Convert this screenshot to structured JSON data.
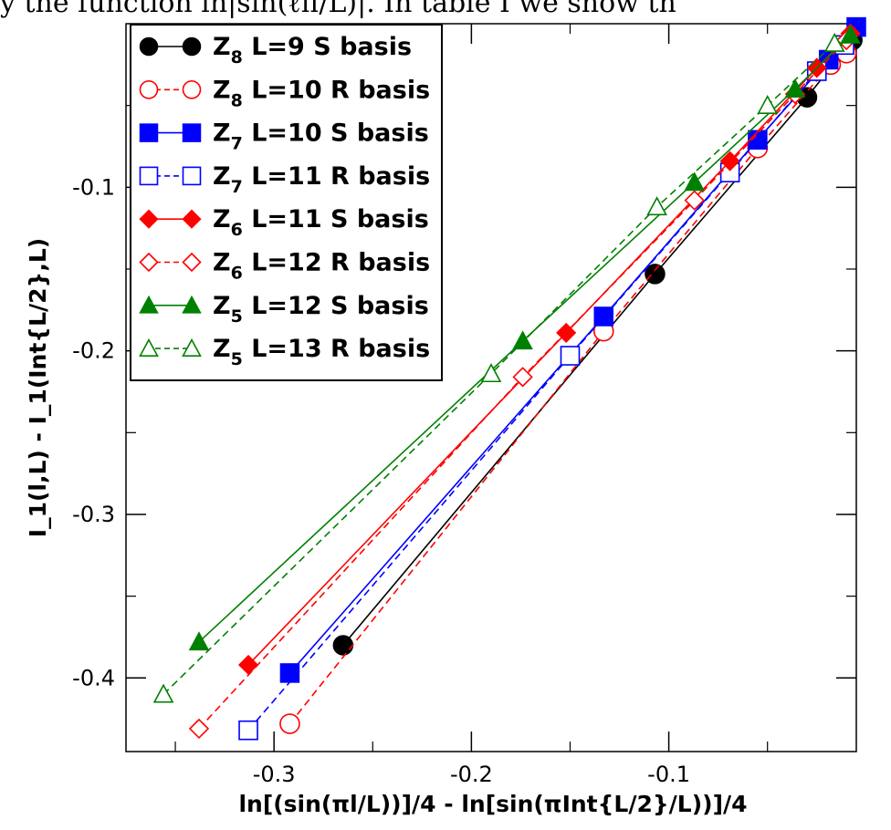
{
  "header_text": "y the function ln|sin(ℓπ/L)|.  In table I we show th",
  "chart_data": {
    "type": "line",
    "xlabel": "ln[(sin(πl/L))]/4 - ln[sin(πInt{L/2}/L))]/4",
    "ylabel": "I_1(l,L) - I_1(Int{L/2},L)",
    "xlim": [
      -0.375,
      -0.005
    ],
    "ylim": [
      -0.445,
      0.0
    ],
    "xticks": [
      -0.3,
      -0.2,
      -0.1
    ],
    "yticks": [
      -0.4,
      -0.3,
      -0.2,
      -0.1
    ],
    "xtick_labels": [
      "-0.3",
      "-0.2",
      "-0.1"
    ],
    "ytick_labels": [
      "-0.4",
      "-0.3",
      "-0.2",
      "-0.1"
    ],
    "grid": false,
    "legend_position": "top-left",
    "series": [
      {
        "name": "Z_8 L=9 S basis",
        "legend_main": "Z",
        "legend_sub": "8",
        "legend_rest": " L=9 S basis",
        "color": "#000000",
        "marker": "circle",
        "filled": true,
        "dashed": false,
        "x": [
          -0.265,
          -0.107,
          -0.03,
          -0.007
        ],
        "y": [
          -0.38,
          -0.153,
          -0.045,
          -0.01
        ]
      },
      {
        "name": "Z_8 L=10 R basis",
        "legend_main": "Z",
        "legend_sub": "8",
        "legend_rest": " L=10 R basis",
        "color": "#ff0000",
        "marker": "circle",
        "filled": false,
        "dashed": true,
        "x": [
          -0.292,
          -0.133,
          -0.055,
          -0.018,
          -0.01
        ],
        "y": [
          -0.428,
          -0.188,
          -0.076,
          -0.025,
          -0.018
        ]
      },
      {
        "name": "Z_7 L=10 S basis",
        "legend_main": "Z",
        "legend_sub": "7",
        "legend_rest": " L=10 S basis",
        "color": "#0000ff",
        "marker": "square",
        "filled": true,
        "dashed": false,
        "x": [
          -0.292,
          -0.133,
          -0.055,
          -0.019,
          -0.005
        ],
        "y": [
          -0.397,
          -0.179,
          -0.071,
          -0.022,
          -0.002
        ]
      },
      {
        "name": "Z_7 L=11 R basis",
        "legend_main": "Z",
        "legend_sub": "7",
        "legend_rest": " L=11 R basis",
        "color": "#0000ff",
        "marker": "square",
        "filled": false,
        "dashed": true,
        "x": [
          -0.313,
          -0.15,
          -0.069,
          -0.025,
          -0.011
        ],
        "y": [
          -0.432,
          -0.203,
          -0.091,
          -0.029,
          -0.013
        ]
      },
      {
        "name": "Z_6 L=11 S basis",
        "legend_main": "Z",
        "legend_sub": "6",
        "legend_rest": " L=11 S basis",
        "color": "#ff0000",
        "marker": "diamond",
        "filled": true,
        "dashed": false,
        "x": [
          -0.313,
          -0.152,
          -0.069,
          -0.025,
          -0.008
        ],
        "y": [
          -0.392,
          -0.189,
          -0.084,
          -0.027,
          -0.006
        ]
      },
      {
        "name": "Z_6 L=12 R basis",
        "legend_main": "Z",
        "legend_sub": "6",
        "legend_rest": " L=12 R basis",
        "color": "#ff0000",
        "marker": "diamond",
        "filled": false,
        "dashed": true,
        "x": [
          -0.338,
          -0.174,
          -0.087,
          -0.036,
          -0.01
        ],
        "y": [
          -0.431,
          -0.216,
          -0.108,
          -0.043,
          -0.01
        ]
      },
      {
        "name": "Z_5 L=12 S basis",
        "legend_main": "Z",
        "legend_sub": "5",
        "legend_rest": " L=12 S basis",
        "color": "#008000",
        "marker": "triangle",
        "filled": true,
        "dashed": false,
        "x": [
          -0.338,
          -0.174,
          -0.087,
          -0.036,
          -0.008
        ],
        "y": [
          -0.378,
          -0.194,
          -0.097,
          -0.04,
          -0.007
        ]
      },
      {
        "name": "Z_5 L=13 R basis",
        "legend_main": "Z",
        "legend_sub": "5",
        "legend_rest": " L=13 R basis",
        "color": "#008000",
        "marker": "triangle",
        "filled": false,
        "dashed": true,
        "x": [
          -0.356,
          -0.19,
          -0.106,
          -0.05,
          -0.016
        ],
        "y": [
          -0.41,
          -0.214,
          -0.112,
          -0.05,
          -0.012
        ]
      }
    ]
  }
}
